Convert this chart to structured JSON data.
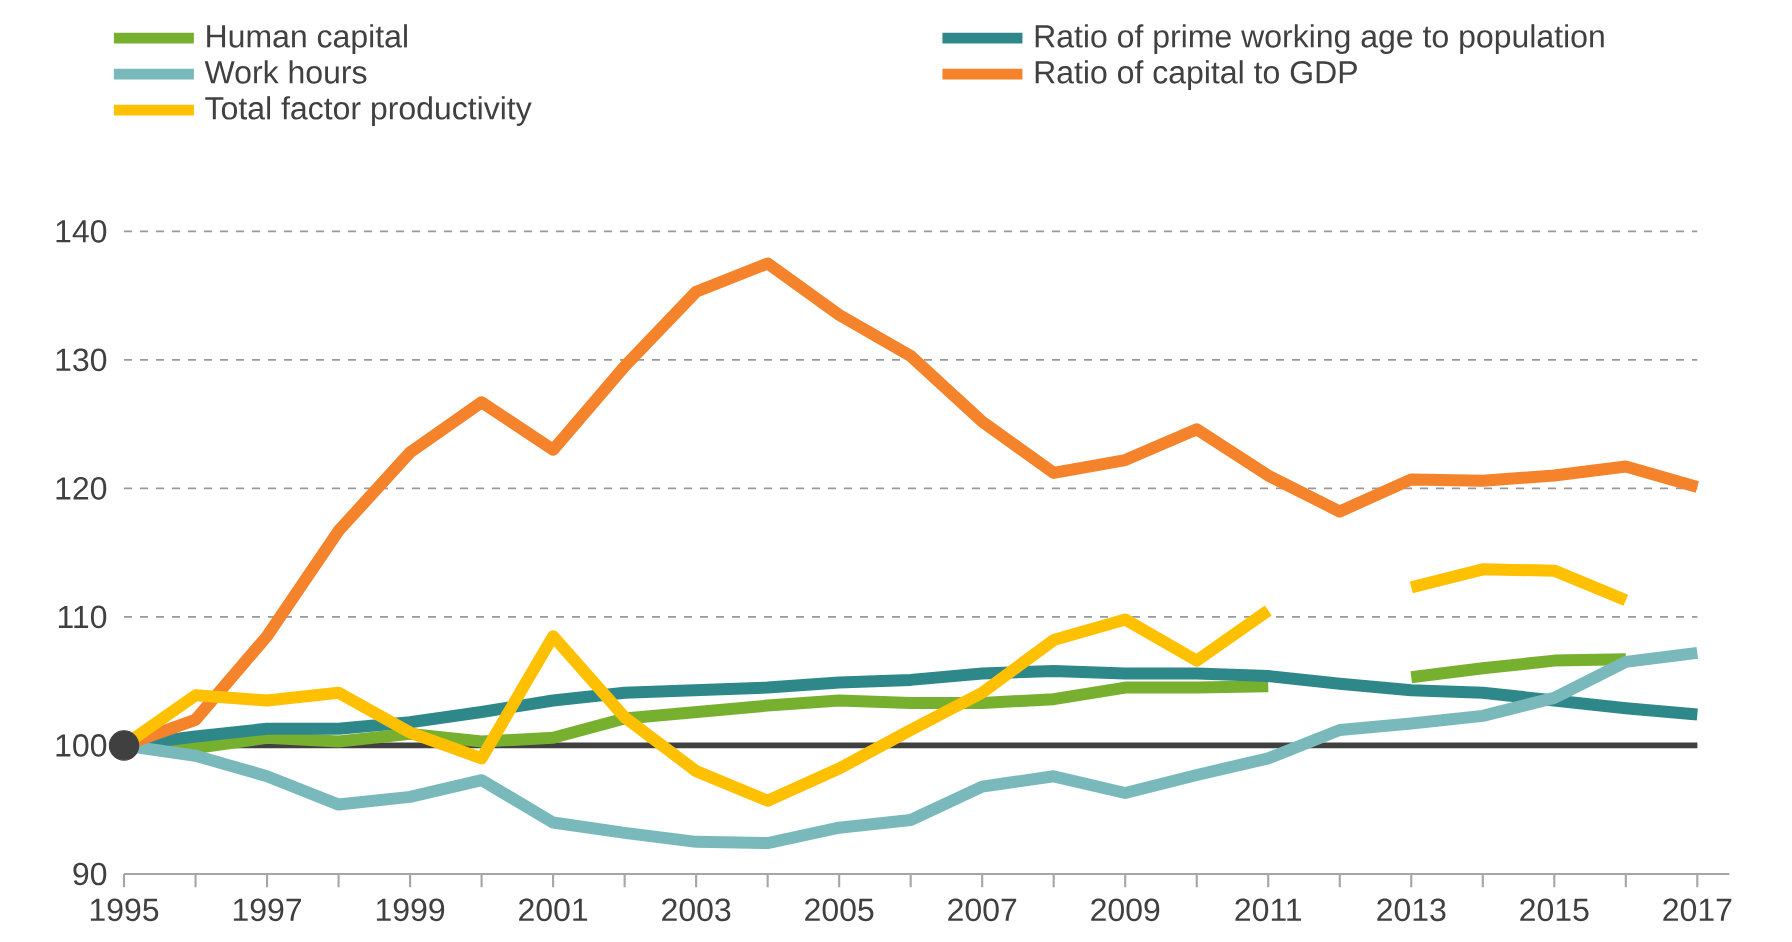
{
  "chart_data": {
    "type": "line",
    "x": [
      1995,
      1996,
      1997,
      1998,
      1999,
      2000,
      2001,
      2002,
      2003,
      2004,
      2005,
      2006,
      2007,
      2008,
      2009,
      2010,
      2011,
      2012,
      2013,
      2014,
      2015,
      2016,
      2017
    ],
    "series": [
      {
        "name": "Human capital",
        "color": "#77b02f",
        "values": [
          100,
          99.8,
          100.6,
          100.3,
          100.9,
          100.3,
          100.6,
          102.1,
          102.6,
          103.1,
          103.5,
          103.3,
          103.3,
          103.6,
          104.5,
          104.5,
          104.6,
          null,
          105.3,
          106.0,
          106.6,
          106.7,
          null
        ]
      },
      {
        "name": "Ratio of prime working age to population",
        "color": "#2e8889",
        "values": [
          100,
          100.7,
          101.3,
          101.3,
          101.8,
          102.6,
          103.5,
          104.1,
          104.3,
          104.5,
          104.9,
          105.1,
          105.6,
          105.8,
          105.6,
          105.6,
          105.4,
          104.8,
          104.3,
          104.1,
          103.5,
          102.9,
          102.4
        ]
      },
      {
        "name": "Work hours",
        "color": "#79b9bc",
        "values": [
          100,
          99.2,
          97.6,
          95.4,
          96.0,
          97.3,
          94.0,
          93.2,
          92.5,
          92.4,
          93.6,
          94.2,
          96.8,
          97.6,
          96.3,
          97.7,
          99.0,
          101.2,
          101.7,
          102.3,
          103.7,
          106.5,
          107.2
        ]
      },
      {
        "name": "Ratio of capital to GDP",
        "color": "#f5832b",
        "values": [
          100,
          102,
          108.5,
          116.7,
          122.8,
          126.7,
          123,
          129.5,
          135.3,
          137.5,
          133.5,
          130.3,
          125.2,
          121.2,
          122.2,
          124.6,
          121,
          118.2,
          120.7,
          120.6,
          121.0,
          121.7,
          120.1
        ]
      },
      {
        "name": "Total factor productivity",
        "color": "#ffc000",
        "values": [
          100,
          103.9,
          103.5,
          104.1,
          101,
          99,
          108.5,
          102.2,
          98,
          95.7,
          98.2,
          101.2,
          104.1,
          108.2,
          109.8,
          106.6,
          110.5,
          null,
          112.3,
          113.7,
          113.6,
          111.3,
          null
        ]
      },
      {
        "type": "scatter",
        "color": "#404040",
        "marker": "circle",
        "x": [
          1995
        ],
        "values": [
          100
        ]
      }
    ],
    "xlim": [
      1995,
      2017
    ],
    "xticks": [
      1995,
      {
        "value": 1996,
        "label": null
      },
      1997,
      {
        "value": 1998,
        "label": null
      },
      1999,
      {
        "value": 2000,
        "label": null
      },
      2001,
      {
        "value": 2002,
        "label": null
      },
      2003,
      {
        "value": 2004,
        "label": null
      },
      2005,
      {
        "value": 2006,
        "label": null
      },
      2007,
      {
        "value": 2008,
        "label": null
      },
      2009,
      {
        "value": 2010,
        "label": null
      },
      2011,
      {
        "value": 2012,
        "label": null
      },
      2013,
      {
        "value": 2014,
        "label": null
      },
      2015,
      {
        "value": 2016,
        "label": null
      },
      2017
    ],
    "ylim": [
      90,
      140
    ],
    "yticks": [
      90,
      100,
      110,
      120,
      130,
      140
    ],
    "ref_lines": [
      {
        "axis": "y",
        "value": 100,
        "color": "#404040"
      }
    ],
    "grid": "y",
    "legend": "top",
    "marker": "none",
    "line_style": "solid"
  }
}
